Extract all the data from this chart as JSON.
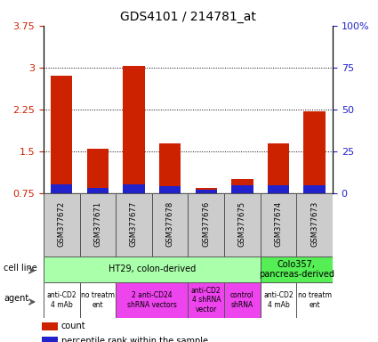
{
  "title": "GDS4101 / 214781_at",
  "samples": [
    "GSM377672",
    "GSM377671",
    "GSM377677",
    "GSM377678",
    "GSM377676",
    "GSM377675",
    "GSM377674",
    "GSM377673"
  ],
  "count_values": [
    2.85,
    1.55,
    3.03,
    1.65,
    0.85,
    1.0,
    1.65,
    2.22
  ],
  "percentile_values": [
    0.88,
    0.82,
    0.88,
    0.85,
    0.78,
    0.87,
    0.87,
    0.87
  ],
  "ylim": [
    0.75,
    3.75
  ],
  "yticks_left": [
    0.75,
    1.5,
    2.25,
    3.0,
    3.75
  ],
  "yticks_right": [
    0,
    25,
    50,
    75,
    100
  ],
  "ytick_labels_left": [
    "0.75",
    "1.5",
    "2.25",
    "3",
    "3.75"
  ],
  "ytick_labels_right": [
    "0",
    "25",
    "50",
    "75",
    "100%"
  ],
  "bar_width": 0.6,
  "count_color": "#cc2200",
  "percentile_color": "#2222cc",
  "cell_line_groups": [
    {
      "label": "HT29, colon-derived",
      "start": 0,
      "end": 6,
      "color": "#aaffaa"
    },
    {
      "label": "Colo357,\npancreas-derived",
      "start": 6,
      "end": 8,
      "color": "#55ee55"
    }
  ],
  "agent_groups": [
    {
      "label": "anti-CD2\n4 mAb",
      "start": 0,
      "end": 1,
      "color": "#ffffff"
    },
    {
      "label": "no treatm\nent",
      "start": 1,
      "end": 2,
      "color": "#ffffff"
    },
    {
      "label": "2 anti-CD24\nshRNA vectors",
      "start": 2,
      "end": 4,
      "color": "#ee44ee"
    },
    {
      "label": "anti-CD2\n4 shRNA\nvector",
      "start": 4,
      "end": 5,
      "color": "#ee44ee"
    },
    {
      "label": "control\nshRNA",
      "start": 5,
      "end": 6,
      "color": "#ee44ee"
    },
    {
      "label": "anti-CD2\n4 mAb",
      "start": 6,
      "end": 7,
      "color": "#ffffff"
    },
    {
      "label": "no treatm\nent",
      "start": 7,
      "end": 8,
      "color": "#ffffff"
    }
  ]
}
